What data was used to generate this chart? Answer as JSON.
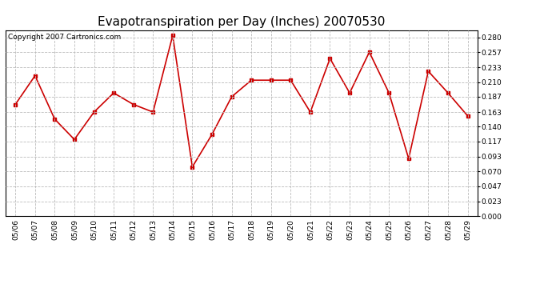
{
  "title": "Evapotranspiration per Day (Inches) 20070530",
  "copyright_text": "Copyright 2007 Cartronics.com",
  "dates": [
    "05/06",
    "05/07",
    "05/08",
    "05/09",
    "05/10",
    "05/11",
    "05/12",
    "05/13",
    "05/14",
    "05/15",
    "05/16",
    "05/17",
    "05/18",
    "05/19",
    "05/20",
    "05/21",
    "05/22",
    "05/23",
    "05/24",
    "05/25",
    "05/26",
    "05/27",
    "05/28",
    "05/29"
  ],
  "values": [
    0.175,
    0.22,
    0.152,
    0.12,
    0.163,
    0.193,
    0.175,
    0.163,
    0.283,
    0.077,
    0.128,
    0.187,
    0.213,
    0.213,
    0.213,
    0.163,
    0.247,
    0.193,
    0.257,
    0.193,
    0.09,
    0.227,
    0.193,
    0.157
  ],
  "line_color": "#cc0000",
  "marker": "s",
  "marker_size": 2.5,
  "line_width": 1.2,
  "bg_color": "#ffffff",
  "plot_bg_color": "#ffffff",
  "grid_color": "#bbbbbb",
  "grid_linestyle": "--",
  "ylim": [
    0.0,
    0.2917
  ],
  "yticks": [
    0.0,
    0.023,
    0.047,
    0.07,
    0.093,
    0.117,
    0.14,
    0.163,
    0.187,
    0.21,
    0.233,
    0.257,
    0.28
  ],
  "title_fontsize": 11,
  "tick_fontsize": 6.5,
  "copyright_fontsize": 6.5
}
